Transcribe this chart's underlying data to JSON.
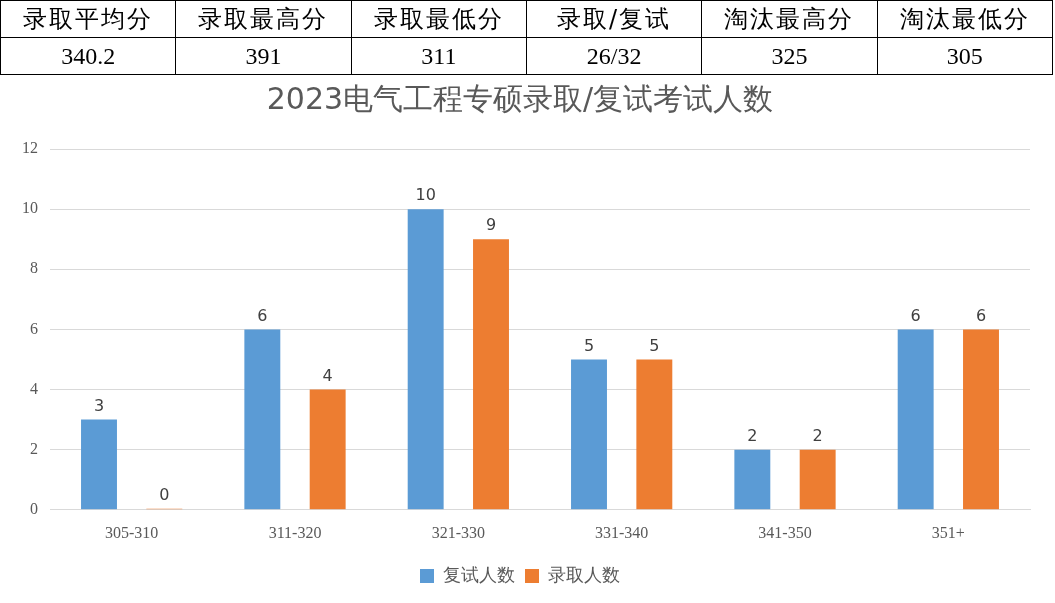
{
  "chart_data": [
    {
      "type": "other",
      "annotations": [
        "录取平均分",
        "录取最高分",
        "录取最低分",
        "录取/复试",
        "淘汰最高分",
        "淘汰最低分",
        "340.2",
        "391",
        "311",
        "26/32",
        "325",
        "305"
      ]
    },
    {
      "type": "bar",
      "title": "2023电气工程专硕录取/复试考试人数",
      "categories": [
        "305-310",
        "311-320",
        "321-330",
        "331-340",
        "341-350",
        "351+"
      ],
      "series": [
        {
          "name": "复试人数",
          "color": "#5b9bd5",
          "values": [
            3,
            6,
            10,
            5,
            2,
            6
          ]
        },
        {
          "name": "录取人数",
          "color": "#ed7d31",
          "values": [
            0,
            4,
            9,
            5,
            2,
            6
          ]
        }
      ],
      "ylim": [
        0,
        12
      ],
      "yticks": [
        0,
        2,
        4,
        6,
        8,
        10,
        12
      ],
      "grid": "y",
      "legend": "bottom",
      "data_labels": true
    }
  ]
}
